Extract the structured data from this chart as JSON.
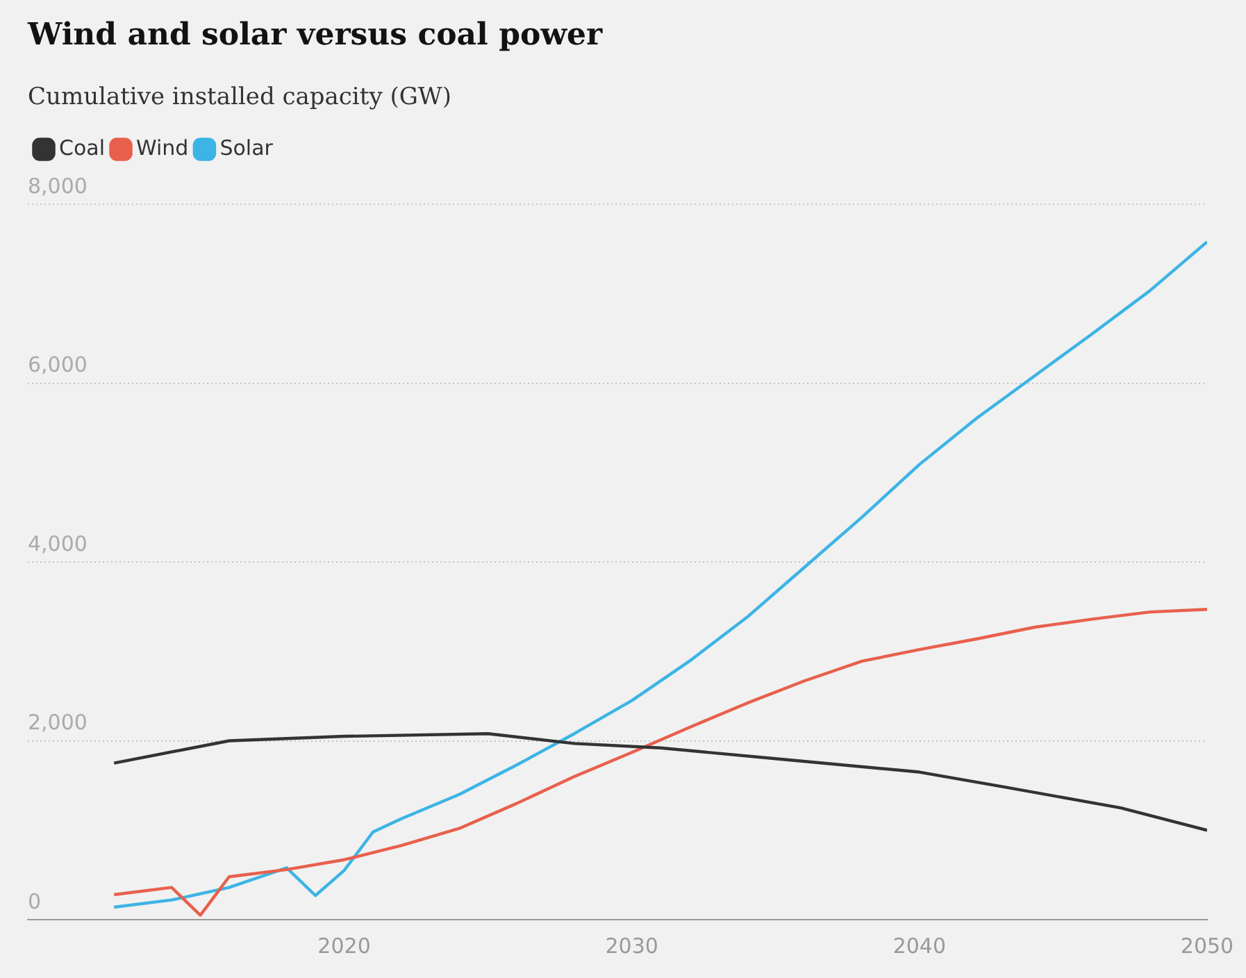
{
  "chart_data": {
    "type": "line",
    "title": "Wind and solar versus coal power",
    "subtitle": "Cumulative installed capacity (GW)",
    "xlim": [
      2009,
      2050
    ],
    "xticks": [
      2020,
      2030,
      2040,
      2050
    ],
    "ylim": [
      0,
      8000
    ],
    "yticks": [
      {
        "value": 0,
        "label": "0"
      },
      {
        "value": 2000,
        "label": "2,000"
      },
      {
        "value": 4000,
        "label": "4,000"
      },
      {
        "value": 6000,
        "label": "6,000"
      },
      {
        "value": 8000,
        "label": "8,000"
      }
    ],
    "grid": "y",
    "legend": "top left",
    "marker": "none",
    "line_style": "solid",
    "series": [
      {
        "name": "Coal",
        "color": "#333333",
        "x": [
          2012,
          2016,
          2020,
          2025,
          2028,
          2031,
          2035,
          2040,
          2043,
          2047,
          2050
        ],
        "values": [
          1750,
          2000,
          2050,
          2080,
          1970,
          1920,
          1800,
          1650,
          1480,
          1250,
          1000
        ]
      },
      {
        "name": "Wind",
        "color": "#e8604c",
        "x": [
          2012,
          2014,
          2015,
          2016,
          2018,
          2020,
          2022,
          2024,
          2026,
          2028,
          2030,
          2032,
          2034,
          2036,
          2038,
          2040,
          2042,
          2044,
          2046,
          2048,
          2050
        ],
        "values": [
          280,
          360,
          50,
          480,
          560,
          670,
          830,
          1020,
          1300,
          1600,
          1870,
          2150,
          2420,
          2670,
          2890,
          3020,
          3140,
          3270,
          3360,
          3440,
          3470
        ]
      },
      {
        "name": "Solar",
        "color": "#3cb4e5",
        "x": [
          2012,
          2014,
          2016,
          2018,
          2019,
          2020,
          2021,
          2022,
          2024,
          2026,
          2028,
          2030,
          2032,
          2034,
          2036,
          2038,
          2040,
          2042,
          2044,
          2046,
          2048,
          2050
        ],
        "values": [
          140,
          220,
          360,
          580,
          270,
          550,
          980,
          1130,
          1400,
          1730,
          2080,
          2450,
          2890,
          3380,
          3940,
          4500,
          5090,
          5610,
          6080,
          6550,
          7030,
          7580
        ]
      }
    ]
  }
}
